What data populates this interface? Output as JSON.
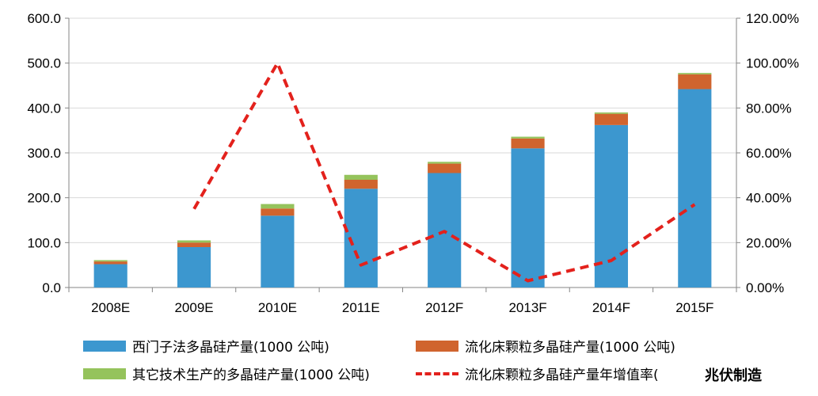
{
  "chart_data": {
    "type": "bar",
    "categories": [
      "2008E",
      "2009E",
      "2010E",
      "2011E",
      "2012F",
      "2013F",
      "2014F",
      "2015F"
    ],
    "series": [
      {
        "name": "西门子法多晶硅产量(1000 公吨)",
        "type": "bar",
        "color": "#3c97cf",
        "values": [
          52,
          90,
          160,
          220,
          255,
          310,
          362,
          442
        ]
      },
      {
        "name": "流化床颗粒多晶硅产量(1000 公吨)",
        "type": "bar",
        "color": "#d0642e",
        "values": [
          6,
          10,
          16,
          20,
          21,
          22,
          25,
          33
        ]
      },
      {
        "name": "其它技术生产的多晶硅产量(1000 公吨)",
        "type": "bar",
        "color": "#95c35c",
        "values": [
          3,
          5,
          10,
          11,
          4,
          4,
          3,
          3
        ]
      },
      {
        "name": "流化床颗粒多晶硅产量年增值率(",
        "type": "line",
        "axis": "right",
        "color": "#e3211c",
        "values": [
          null,
          0.35,
          1.0,
          0.1,
          0.25,
          0.03,
          0.12,
          0.37
        ]
      }
    ],
    "y_left": {
      "ylim": [
        0,
        600
      ],
      "ticks": [
        "0.0",
        "100.0",
        "200.0",
        "300.0",
        "400.0",
        "500.0",
        "600.0"
      ]
    },
    "y_right": {
      "ylim": [
        0,
        1.2
      ],
      "ticks": [
        "0.00%",
        "20.00%",
        "40.00%",
        "60.00%",
        "80.00%",
        "100.00%",
        "120.00%"
      ]
    },
    "stacked": true,
    "grid": "horizontal",
    "legend_position": "bottom"
  },
  "watermark": "兆伏制造"
}
